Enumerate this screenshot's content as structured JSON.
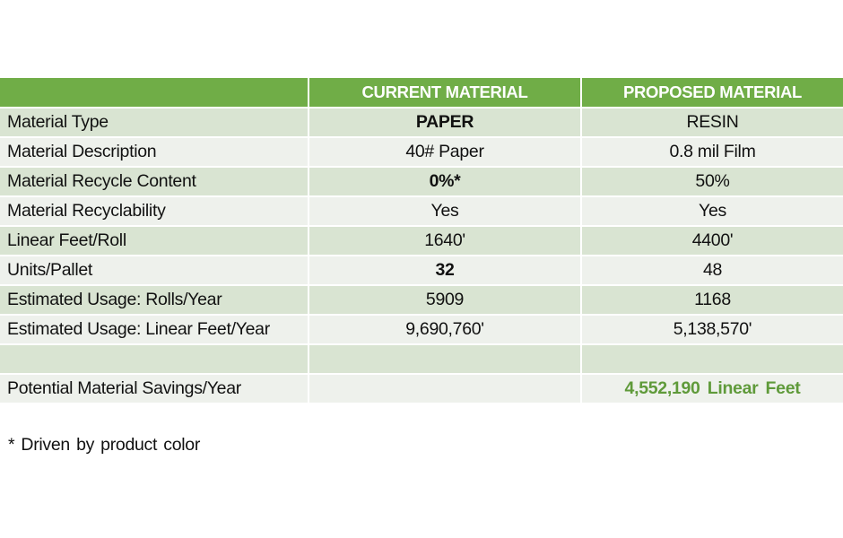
{
  "table": {
    "headers": [
      "",
      "CURRENT MATERIAL",
      "PROPOSED MATERIAL"
    ],
    "rows": [
      {
        "label": "Material Type",
        "current": "PAPER",
        "proposed": "RESIN"
      },
      {
        "label": "Material Description",
        "current": "40# Paper",
        "proposed": "0.8 mil Film"
      },
      {
        "label": "Material Recycle Content",
        "current": "0%*",
        "proposed": "50%"
      },
      {
        "label": "Material Recyclability",
        "current": "Yes",
        "proposed": "Yes"
      },
      {
        "label": "Linear Feet/Roll",
        "current": "1640'",
        "proposed": "4400'"
      },
      {
        "label": "Units/Pallet",
        "current": "32",
        "proposed": "48"
      },
      {
        "label": "Estimated Usage: Rolls/Year",
        "current": "5909",
        "proposed": "1168"
      },
      {
        "label": "Estimated Usage: Linear Feet/Year",
        "current": "9,690,760'",
        "proposed": "5,138,570'"
      },
      {
        "label": "",
        "current": "",
        "proposed": ""
      },
      {
        "label": "Potential Material Savings/Year",
        "current": "",
        "proposed": "4,552,190 Linear Feet"
      }
    ]
  },
  "footnote": "* Driven by product color",
  "colors": {
    "header_bg": "#70ad47",
    "header_text": "#ffffff",
    "row_tint": "#d9e4d2",
    "row_light": "#eef1ec",
    "savings_text": "#5f9a3a"
  }
}
